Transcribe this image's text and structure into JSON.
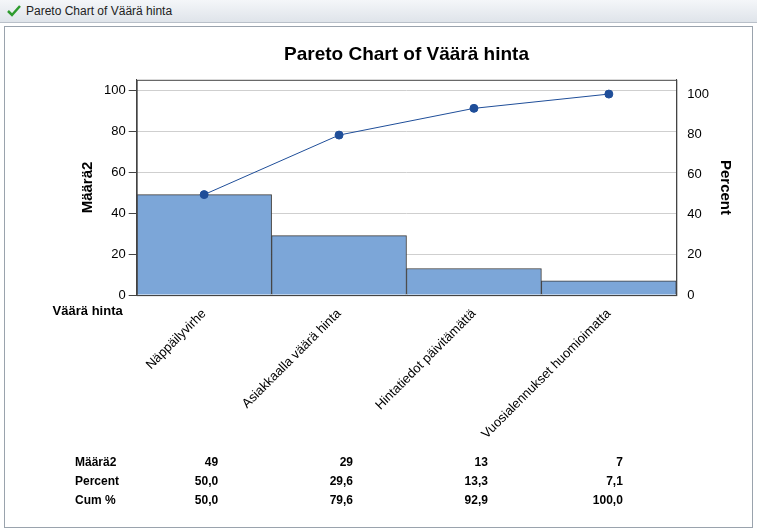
{
  "window_title": "Pareto Chart of Väärä hinta",
  "chart_data": {
    "type": "bar",
    "title": "Pareto Chart of Väärä hinta",
    "x_label": "Väärä hinta",
    "y_label": "Määrä2",
    "y2_label": "Percent",
    "categories": [
      "Näppäilyvirhe",
      "Asiakkaalla väärä hinta",
      "Hintatiedot päivitämättä",
      "Vuosialennukset huomioimatta"
    ],
    "series": [
      {
        "name": "Määrä2",
        "type": "bar",
        "color": "#7ca6d8",
        "values": [
          49,
          29,
          13,
          7
        ]
      },
      {
        "name": "Cum %",
        "type": "line",
        "color": "#1f4e99",
        "marker": "circle",
        "axis": "y2",
        "values": [
          50.0,
          79.6,
          92.9,
          100.0
        ]
      }
    ],
    "ylim": [
      0,
      105
    ],
    "yticks": [
      0,
      20,
      40,
      60,
      80,
      100
    ],
    "y2lim": [
      0,
      107.1
    ],
    "y2ticks": [
      0,
      20,
      40,
      60,
      80,
      100
    ],
    "grid": true,
    "table": {
      "rows": [
        {
          "name": "Määrä2",
          "values": [
            49,
            29,
            13,
            7
          ]
        },
        {
          "name": "Percent",
          "values": [
            50.0,
            29.6,
            13.3,
            7.1
          ],
          "value_labels": [
            "50,0",
            "29,6",
            "13,3",
            "7,1"
          ]
        },
        {
          "name": "Cum %",
          "values": [
            50.0,
            79.6,
            92.9,
            100.0
          ],
          "value_labels": [
            "50,0",
            "79,6",
            "92,9",
            "100,0"
          ]
        }
      ]
    }
  }
}
